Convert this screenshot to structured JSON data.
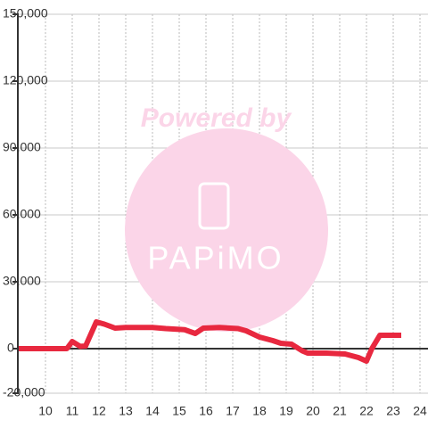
{
  "chart_data": {
    "type": "line",
    "watermark": {
      "line1": "Powered by",
      "line2": "PAPiMO"
    },
    "x": [
      9,
      10.6,
      10.8,
      11,
      11.3,
      11.5,
      11.9,
      12.2,
      12.6,
      13,
      14,
      14.5,
      15.2,
      15.6,
      15.9,
      16.5,
      17.2,
      17.5,
      18,
      18.5,
      18.8,
      19.2,
      19.6,
      19.8,
      20.5,
      21.2,
      21.7,
      22,
      22.2,
      22.5,
      23.3
    ],
    "series": [
      {
        "color": "#e8283f",
        "values": [
          0,
          0,
          0,
          3200,
          1000,
          1200,
          12000,
          11000,
          9200,
          9500,
          9500,
          9000,
          8500,
          6800,
          9200,
          9500,
          9000,
          8000,
          5200,
          3600,
          2400,
          2000,
          -1000,
          -2000,
          -2000,
          -2400,
          -4000,
          -5600,
          0,
          6000,
          6000
        ]
      }
    ],
    "xlim": [
      9,
      24.3
    ],
    "xticks": [
      10,
      11,
      12,
      13,
      14,
      15,
      16,
      17,
      18,
      19,
      20,
      21,
      22,
      23,
      24
    ],
    "ylim": [
      -20000,
      150000
    ],
    "yticks": [
      {
        "value": -20000,
        "label": "-20,000"
      },
      0,
      {
        "value": 30000,
        "label": "30,000"
      },
      {
        "value": 60000,
        "label": "60,000"
      },
      {
        "value": 90000,
        "label": "90,000"
      },
      {
        "value": 120000,
        "label": "120,000"
      },
      {
        "value": 150000,
        "label": "150,000"
      }
    ],
    "grid": true
  }
}
